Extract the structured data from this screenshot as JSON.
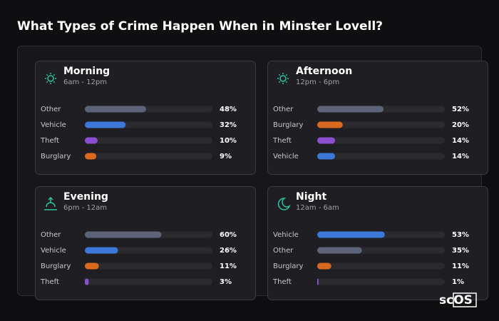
{
  "title": "What Types of Crime Happen When in Minster Lovell?",
  "logo": "scOS",
  "chart_data": [
    {
      "type": "bar",
      "orientation": "horizontal",
      "title": "Morning",
      "subtitle": "6am - 12pm",
      "categories": [
        "Other",
        "Vehicle",
        "Theft",
        "Burglary"
      ],
      "values": [
        48,
        32,
        10,
        9
      ],
      "value_labels": [
        "48%",
        "32%",
        "10%",
        "9%"
      ],
      "colors": [
        "#5b6478",
        "#3b78d8",
        "#8b4fd2",
        "#d9691f"
      ],
      "xlim": [
        0,
        100
      ]
    },
    {
      "type": "bar",
      "orientation": "horizontal",
      "title": "Afternoon",
      "subtitle": "12pm - 6pm",
      "categories": [
        "Other",
        "Burglary",
        "Theft",
        "Vehicle"
      ],
      "values": [
        52,
        20,
        14,
        14
      ],
      "value_labels": [
        "52%",
        "20%",
        "14%",
        "14%"
      ],
      "colors": [
        "#5b6478",
        "#d9691f",
        "#8b4fd2",
        "#3b78d8"
      ],
      "xlim": [
        0,
        100
      ]
    },
    {
      "type": "bar",
      "orientation": "horizontal",
      "title": "Evening",
      "subtitle": "6pm - 12am",
      "categories": [
        "Other",
        "Vehicle",
        "Burglary",
        "Theft"
      ],
      "values": [
        60,
        26,
        11,
        3
      ],
      "value_labels": [
        "60%",
        "26%",
        "11%",
        "3%"
      ],
      "colors": [
        "#5b6478",
        "#3b78d8",
        "#d9691f",
        "#8b4fd2"
      ],
      "xlim": [
        0,
        100
      ]
    },
    {
      "type": "bar",
      "orientation": "horizontal",
      "title": "Night",
      "subtitle": "12am - 6am",
      "categories": [
        "Vehicle",
        "Other",
        "Burglary",
        "Theft"
      ],
      "values": [
        53,
        35,
        11,
        1
      ],
      "value_labels": [
        "53%",
        "35%",
        "11%",
        "1%"
      ],
      "colors": [
        "#3b78d8",
        "#5b6478",
        "#d9691f",
        "#8b4fd2"
      ],
      "xlim": [
        0,
        100
      ]
    }
  ]
}
